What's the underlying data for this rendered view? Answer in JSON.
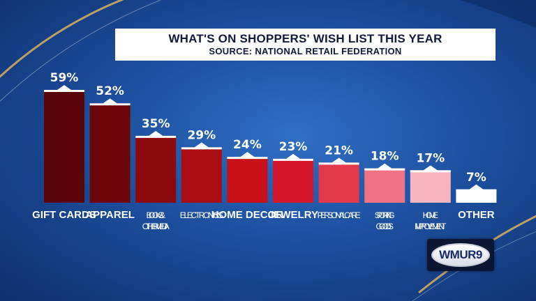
{
  "title": "WHAT'S ON SHOPPERS' WISH LIST THIS YEAR",
  "subtitle": "SOURCE: NATIONAL RETAIL FEDERATION",
  "logo_text": "WMUR9",
  "chart_data": {
    "type": "bar",
    "title": "WHAT'S ON SHOPPERS' WISH LIST THIS YEAR",
    "subtitle": "SOURCE: NATIONAL RETAIL FEDERATION",
    "categories": [
      "GIFT CARDS",
      "APPAREL",
      "BOOKS & OTHER MEDIA",
      "ELECTRONICS",
      "HOME DECOR",
      "JEWELRY",
      "PERSONAL CARE",
      "SPORTING GOODS",
      "HOME IMPROVEMENT",
      "OTHER"
    ],
    "category_lines": [
      [
        "GIFT CARDS"
      ],
      [
        "APPAREL"
      ],
      [
        "BOOKS &",
        "OTHER MEDIA"
      ],
      [
        "ELECTRONICS"
      ],
      [
        "HOME DECOR"
      ],
      [
        "JEWELRY"
      ],
      [
        "PERSONAL CARE"
      ],
      [
        "SPORTING",
        "GOODS"
      ],
      [
        "HOME",
        "IMPROVEMENT"
      ],
      [
        "OTHER"
      ]
    ],
    "values": [
      59,
      52,
      35,
      29,
      24,
      23,
      21,
      18,
      17,
      7
    ],
    "value_labels": [
      "59%",
      "52%",
      "35%",
      "29%",
      "24%",
      "23%",
      "21%",
      "18%",
      "17%",
      "7%"
    ],
    "colors": [
      "#5a0508",
      "#6e070b",
      "#8a0a0e",
      "#a80d12",
      "#c81018",
      "#d4182a",
      "#e23a4c",
      "#ef7383",
      "#f6b4be",
      "#ffffff"
    ],
    "ylim": [
      0,
      60
    ],
    "grid": false,
    "legend": "none"
  }
}
